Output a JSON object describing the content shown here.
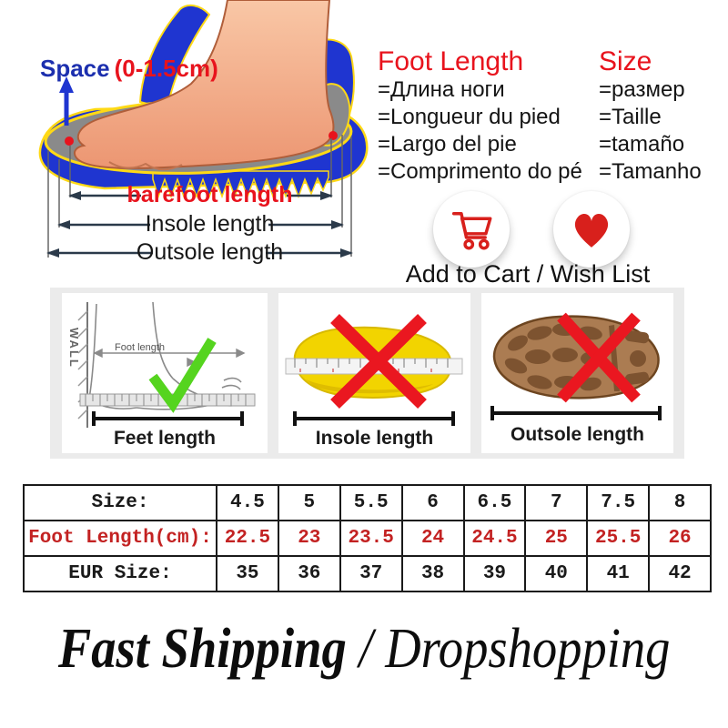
{
  "foot_diagram": {
    "space_label": "Space",
    "space_range": "(0-1.5cm)",
    "barefoot_label": "barefoot length",
    "insole_label": "Insole length",
    "outsole_label": "Outsole length"
  },
  "foot_length_block": {
    "title": "Foot Length",
    "items": [
      "=Длина ноги",
      "=Longueur du pied",
      "=Largo del pie",
      "=Comprimento do pé"
    ]
  },
  "size_block": {
    "title": "Size",
    "items": [
      "=размер",
      "=Taille",
      "=tamaño",
      "=Tamanho"
    ]
  },
  "actions": {
    "label": "Add to Cart / Wish List",
    "cart_icon": "shopping-cart",
    "wish_icon": "heart",
    "icon_color": "#d8201c"
  },
  "measure_guide": {
    "boxes": [
      {
        "label": "Feet length",
        "mark": "correct",
        "wall_label": "WALL",
        "inner_label": "Foot length"
      },
      {
        "label": "Insole length",
        "mark": "wrong"
      },
      {
        "label": "Outsole length",
        "mark": "wrong"
      }
    ]
  },
  "size_table": {
    "rows": [
      {
        "label": "Size:",
        "color": "#1a1a1a",
        "values": [
          "4.5",
          "5",
          "5.5",
          "6",
          "6.5",
          "7",
          "7.5",
          "8"
        ]
      },
      {
        "label": "Foot Length(cm):",
        "color": "#c32222",
        "values": [
          "22.5",
          "23",
          "23.5",
          "24",
          "24.5",
          "25",
          "25.5",
          "26"
        ]
      },
      {
        "label": "EUR Size:",
        "color": "#1a1a1a",
        "values": [
          "35",
          "36",
          "37",
          "38",
          "39",
          "40",
          "41",
          "42"
        ]
      }
    ]
  },
  "footer": {
    "text_bold": "Fast Shipping",
    "text_rest": " / Dropshopping"
  },
  "colors": {
    "accent_red": "#e8131d",
    "shoe_blue": "#1f35d0",
    "navy": "#1c2fae",
    "check_green": "#55d41f",
    "insole_yellow": "#f2d400",
    "outsole_brown": "#ab7c52"
  }
}
